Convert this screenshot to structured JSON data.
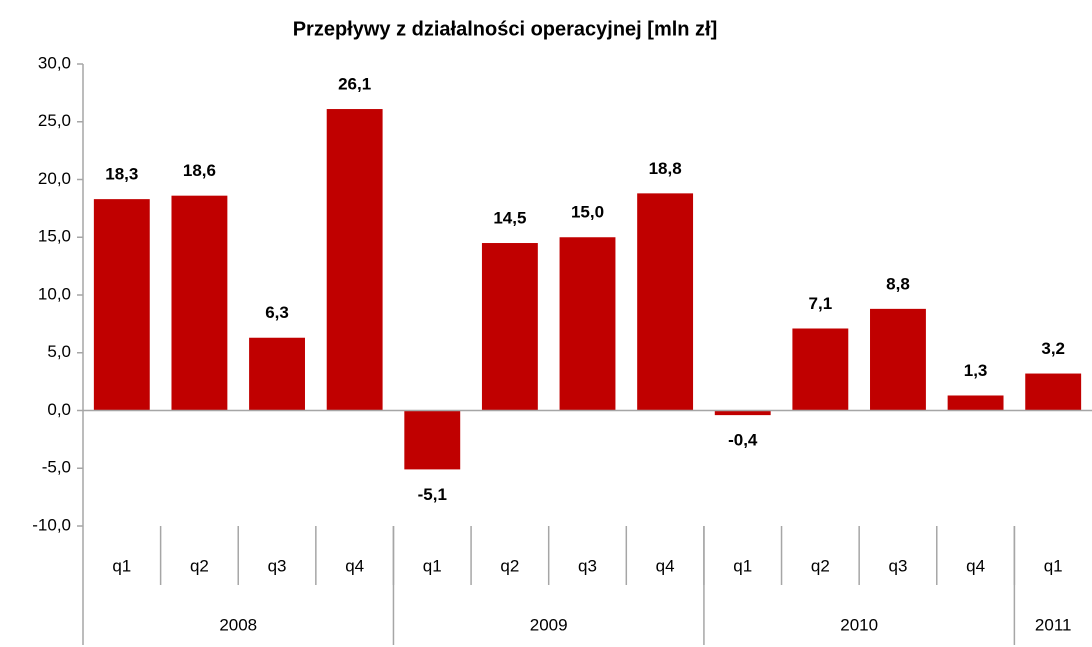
{
  "chart_data": {
    "type": "bar",
    "title": "Przepływy z działalności operacyjnej [mln zł]",
    "categories": [
      "q1",
      "q2",
      "q3",
      "q4",
      "q1",
      "q2",
      "q3",
      "q4",
      "q1",
      "q2",
      "q3",
      "q4",
      "q1"
    ],
    "category_groups": [
      {
        "label": "2008",
        "span": 4
      },
      {
        "label": "2009",
        "span": 4
      },
      {
        "label": "2010",
        "span": 4
      },
      {
        "label": "2011",
        "span": 1
      }
    ],
    "values": [
      18.3,
      18.6,
      6.3,
      26.1,
      -5.1,
      14.5,
      15.0,
      18.8,
      -0.4,
      7.1,
      8.8,
      1.3,
      3.2
    ],
    "value_labels": [
      "18,3",
      "18,6",
      "6,3",
      "26,1",
      "-5,1",
      "14,5",
      "15,0",
      "18,8",
      "-0,4",
      "7,1",
      "8,8",
      "1,3",
      "3,2"
    ],
    "color": "#c00000",
    "ylim": [
      -10,
      30
    ],
    "yticks": [
      {
        "value": -10,
        "label": "-10,0"
      },
      {
        "value": -5,
        "label": "-5,0"
      },
      {
        "value": 0,
        "label": "0,0"
      },
      {
        "value": 5,
        "label": "5,0"
      },
      {
        "value": 10,
        "label": "10,0"
      },
      {
        "value": 15,
        "label": "15,0"
      },
      {
        "value": 20,
        "label": "20,0"
      },
      {
        "value": 25,
        "label": "25,0"
      },
      {
        "value": 30,
        "label": "30,0"
      }
    ],
    "grid": false
  }
}
